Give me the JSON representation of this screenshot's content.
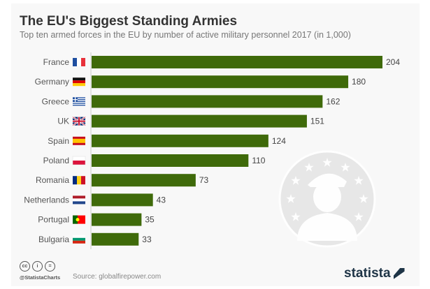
{
  "chart_data": {
    "type": "bar",
    "orientation": "horizontal",
    "title": "The EU's Biggest Standing Armies",
    "subtitle": "Top ten armed forces in the EU by number of active military personnel 2017 (in 1,000)",
    "categories": [
      "France",
      "Germany",
      "Greece",
      "UK",
      "Spain",
      "Poland",
      "Romania",
      "Netherlands",
      "Portugal",
      "Bulgaria"
    ],
    "values": [
      204,
      180,
      162,
      151,
      124,
      110,
      73,
      43,
      35,
      33
    ],
    "xlim": [
      0,
      204
    ],
    "grid": false,
    "bar_color": "#3f6a0a"
  },
  "footer": {
    "license_icons": [
      "cc",
      "by",
      "nd"
    ],
    "handle": "@StatistaCharts",
    "source": "Source: globalfirepower.com",
    "logo": "statista"
  }
}
